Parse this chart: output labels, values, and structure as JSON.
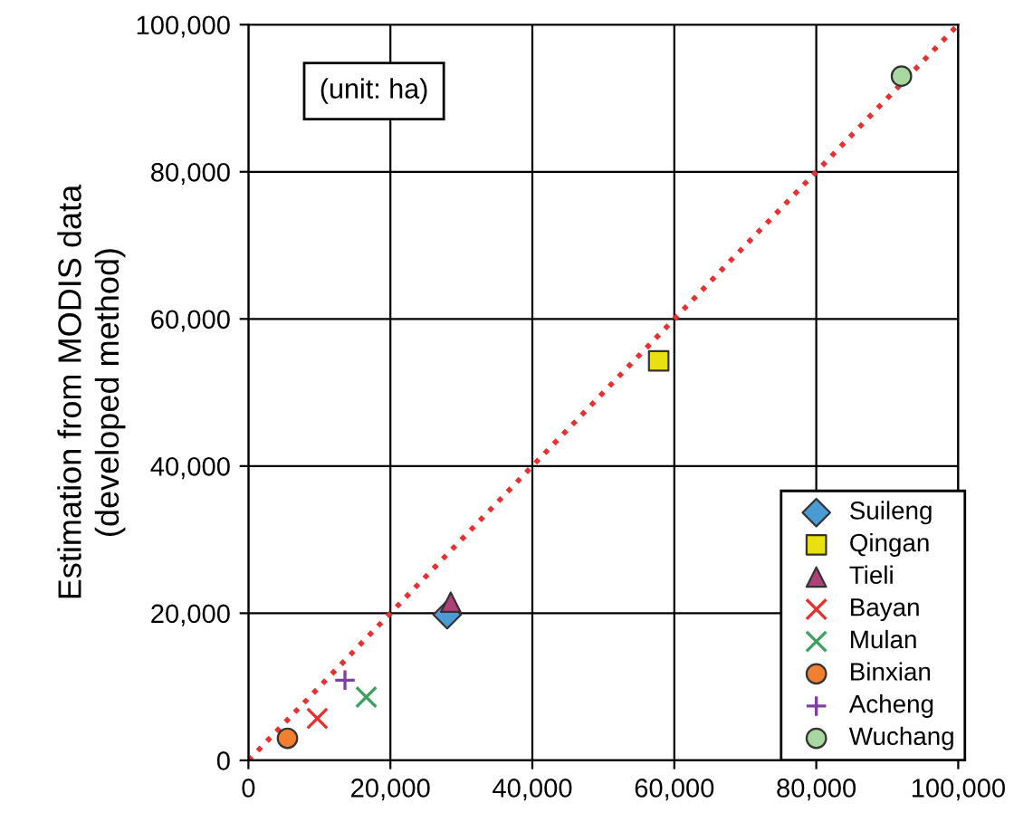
{
  "chart_data": {
    "type": "scatter",
    "ylabel": "Estimation from MODIS data\n(developed method)",
    "annotations": [
      "(unit: ha)"
    ],
    "xlim": [
      0,
      100000
    ],
    "ylim": [
      0,
      100000
    ],
    "xticks": [
      {
        "value": 0,
        "label": "0"
      },
      {
        "value": 20000,
        "label": "20,000"
      },
      {
        "value": 40000,
        "label": "40,000"
      },
      {
        "value": 60000,
        "label": "60,000"
      },
      {
        "value": 80000,
        "label": "80,000"
      },
      {
        "value": 100000,
        "label": "100,000"
      }
    ],
    "yticks": [
      {
        "value": 0,
        "label": "0"
      },
      {
        "value": 20000,
        "label": "20,000"
      },
      {
        "value": 40000,
        "label": "40,000"
      },
      {
        "value": 60000,
        "label": "60,000"
      },
      {
        "value": 80000,
        "label": "80,000"
      },
      {
        "value": 100000,
        "label": "100,000"
      }
    ],
    "grid": true,
    "legend": "bottom right",
    "series": [
      {
        "name": "Suileng",
        "color": "#4a9bd4",
        "marker": "diamond",
        "x": [
          28000
        ],
        "values": [
          19800
        ]
      },
      {
        "name": "Qingan",
        "color": "#e8e010",
        "marker": "square",
        "x": [
          57800
        ],
        "values": [
          54300
        ]
      },
      {
        "name": "Tieli",
        "color": "#b0407a",
        "marker": "triangle",
        "x": [
          28500
        ],
        "values": [
          21500
        ]
      },
      {
        "name": "Bayan",
        "color": "#e83030",
        "marker": "cross",
        "x": [
          9700
        ],
        "values": [
          5700
        ]
      },
      {
        "name": "Mulan",
        "color": "#40a060",
        "marker": "cross",
        "x": [
          16600
        ],
        "values": [
          8600
        ]
      },
      {
        "name": "Binxian",
        "color": "#f08030",
        "marker": "circle",
        "x": [
          5500
        ],
        "values": [
          3000
        ]
      },
      {
        "name": "Acheng",
        "color": "#8040a0",
        "marker": "plus",
        "x": [
          13600
        ],
        "values": [
          10900
        ]
      },
      {
        "name": "Wuchang",
        "color": "#a8d8a0",
        "marker": "circle",
        "x": [
          92000
        ],
        "values": [
          93000
        ]
      },
      {
        "type": "line",
        "color": "#e83030",
        "line_style": "dotted",
        "marker": "none",
        "x": [
          0,
          100000
        ],
        "values": [
          0,
          100000
        ]
      }
    ]
  }
}
